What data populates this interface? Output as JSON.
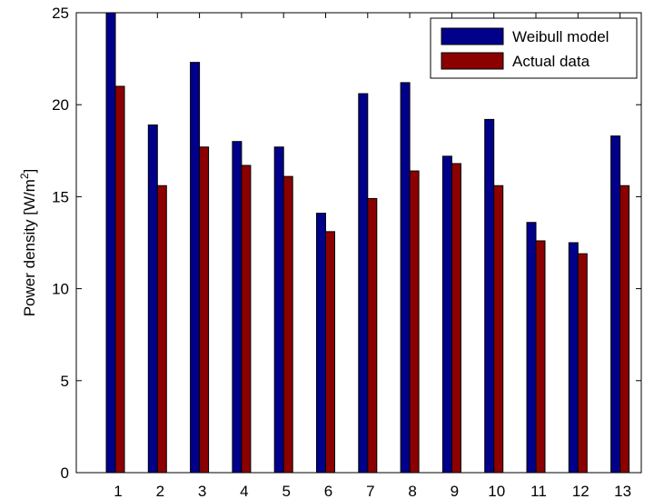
{
  "chart_data": {
    "type": "bar",
    "categories": [
      "1",
      "2",
      "3",
      "4",
      "5",
      "6",
      "7",
      "8",
      "9",
      "10",
      "11",
      "12",
      "13"
    ],
    "series": [
      {
        "name": "Weibull model",
        "color": "#00008b",
        "values": [
          25.0,
          18.9,
          22.3,
          18.0,
          17.7,
          14.1,
          20.6,
          21.2,
          17.2,
          19.2,
          13.6,
          12.5,
          18.3
        ]
      },
      {
        "name": "Actual data",
        "color": "#8b0000",
        "values": [
          21.0,
          15.6,
          17.7,
          16.7,
          16.1,
          13.1,
          14.9,
          16.4,
          16.8,
          15.6,
          12.6,
          11.9,
          15.6
        ]
      }
    ],
    "ylabel": "Power density [W/m",
    "ylabel_sup": "2",
    "ylabel_close": "]",
    "ylim": [
      0,
      25
    ],
    "yticks": [
      "0",
      "5",
      "10",
      "15",
      "20",
      "25"
    ],
    "legend_position": "top-right",
    "grid": false
  }
}
